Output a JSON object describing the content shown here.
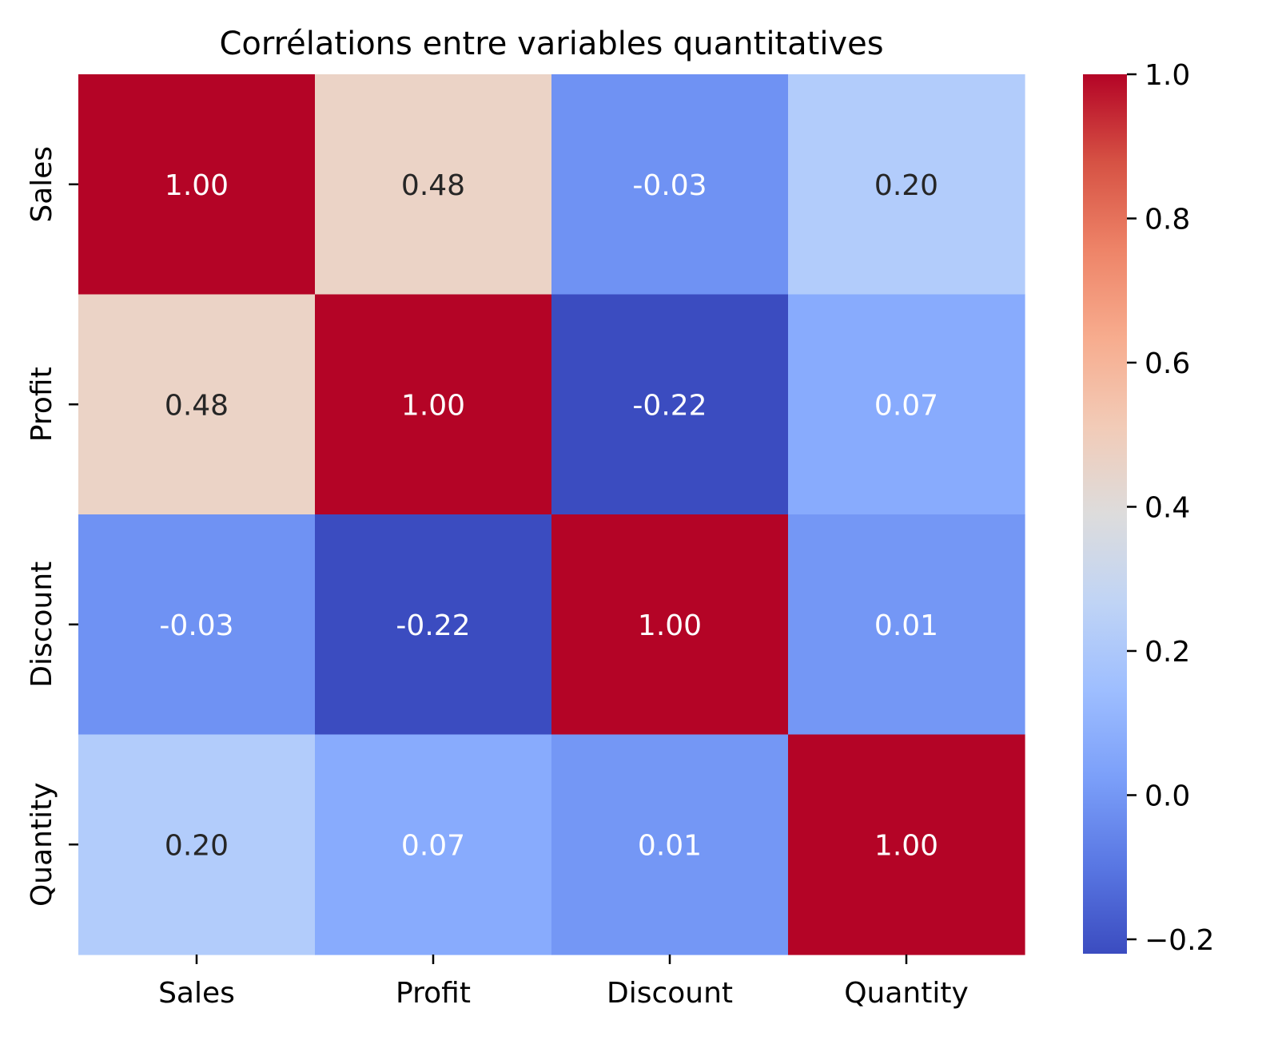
{
  "chart_data": {
    "type": "heatmap",
    "title": "Corrélations entre variables quantitatives",
    "xlabel": "",
    "ylabel": "",
    "x_categories": [
      "Sales",
      "Profit",
      "Discount",
      "Quantity"
    ],
    "y_categories": [
      "Sales",
      "Profit",
      "Discount",
      "Quantity"
    ],
    "values": [
      [
        1.0,
        0.48,
        -0.03,
        0.2
      ],
      [
        0.48,
        1.0,
        -0.22,
        0.07
      ],
      [
        -0.03,
        -0.22,
        1.0,
        0.01
      ],
      [
        0.2,
        0.07,
        0.01,
        1.0
      ]
    ],
    "value_labels": [
      [
        "1.00",
        "0.48",
        "-0.03",
        "0.20"
      ],
      [
        "0.48",
        "1.00",
        "-0.22",
        "0.07"
      ],
      [
        "-0.03",
        "-0.22",
        "1.00",
        "0.01"
      ],
      [
        "0.20",
        "0.07",
        "0.01",
        "1.00"
      ]
    ],
    "colormap": "coolwarm",
    "colorbar": {
      "range": [
        -0.22,
        1.0
      ],
      "ticks": [
        -0.2,
        0.0,
        0.2,
        0.4,
        0.6,
        0.8,
        1.0
      ],
      "tick_labels": [
        "−0.2",
        "0.0",
        "0.2",
        "0.4",
        "0.6",
        "0.8",
        "1.0"
      ]
    },
    "cell_colors": [
      [
        "#b40426",
        "#ebd3c6",
        "#6f92f3",
        "#b2ccfb"
      ],
      [
        "#ebd3c6",
        "#b40426",
        "#3b4cc0",
        "#88abfd"
      ],
      [
        "#6f92f3",
        "#3b4cc0",
        "#b40426",
        "#7497f5"
      ],
      [
        "#b2ccfb",
        "#88abfd",
        "#7497f5",
        "#b40426"
      ]
    ],
    "label_colors": [
      [
        "#ffffff",
        "#262626",
        "#ffffff",
        "#262626"
      ],
      [
        "#262626",
        "#ffffff",
        "#ffffff",
        "#ffffff"
      ],
      [
        "#ffffff",
        "#ffffff",
        "#ffffff",
        "#ffffff"
      ],
      [
        "#262626",
        "#ffffff",
        "#ffffff",
        "#ffffff"
      ]
    ],
    "colorbar_stops": [
      "#3b4cc0",
      "#5977e3",
      "#7b9ff9",
      "#9ebeff",
      "#c0d4f5",
      "#dddcdc",
      "#f2cbb7",
      "#f7ac8e",
      "#ee8468",
      "#d65244",
      "#b40426"
    ],
    "grid": false
  }
}
